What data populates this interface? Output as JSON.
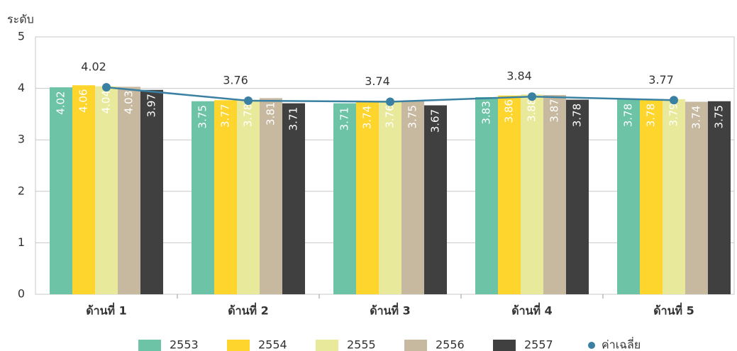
{
  "chart_data": {
    "type": "bar",
    "y_label": "ระดับ",
    "categories": [
      "ด้านที่ 1",
      "ด้านที่ 2",
      "ด้านที่ 3",
      "ด้านที่ 4",
      "ด้านที่ 5"
    ],
    "series": [
      {
        "name": "2553",
        "color": "#6cc3a6",
        "values": [
          4.02,
          3.75,
          3.71,
          3.83,
          3.78
        ]
      },
      {
        "name": "2554",
        "color": "#fdd52c",
        "values": [
          4.06,
          3.77,
          3.74,
          3.86,
          3.78
        ]
      },
      {
        "name": "2555",
        "color": "#e9e99b",
        "values": [
          4.04,
          3.78,
          3.76,
          3.88,
          3.79
        ]
      },
      {
        "name": "2556",
        "color": "#c7b8a0",
        "values": [
          4.03,
          3.81,
          3.75,
          3.87,
          3.74
        ]
      },
      {
        "name": "2557",
        "color": "#404040",
        "values": [
          3.97,
          3.71,
          3.67,
          3.78,
          3.75
        ]
      },
      {
        "name": "ค่าเฉลี่ย",
        "type": "line",
        "color": "#3a80a2",
        "values": [
          4.02,
          3.76,
          3.74,
          3.84,
          3.77
        ]
      }
    ],
    "ylim": [
      0,
      5
    ],
    "yticks": [
      0,
      1,
      2,
      3,
      4,
      5
    ],
    "grid": true
  }
}
